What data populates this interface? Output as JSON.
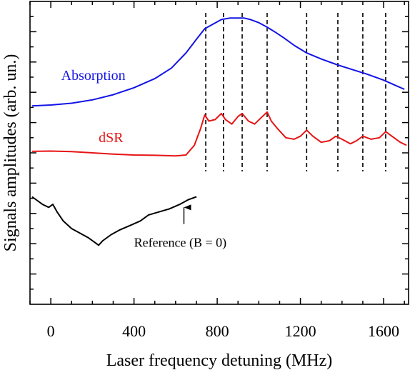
{
  "chart_data": {
    "type": "line",
    "xlabel": "Laser frequency detuning (MHz)",
    "ylabel": "Signals amplitudes (arb. un.)",
    "xlim": [
      -100,
      1720
    ],
    "ylim": [
      0,
      10
    ],
    "xticks": [
      0,
      400,
      800,
      1200,
      1600
    ],
    "x_minor_step": 100,
    "y_tick_step": 0.5,
    "grid": false,
    "legend": "none",
    "series": [
      {
        "name": "Absorption",
        "color": "#1414e6",
        "label_pos": [
          50,
          7.4
        ],
        "points": [
          [
            -90,
            6.55
          ],
          [
            0,
            6.58
          ],
          [
            100,
            6.64
          ],
          [
            200,
            6.75
          ],
          [
            300,
            6.92
          ],
          [
            400,
            7.15
          ],
          [
            500,
            7.45
          ],
          [
            580,
            7.8
          ],
          [
            650,
            8.3
          ],
          [
            700,
            8.75
          ],
          [
            740,
            9.1
          ],
          [
            780,
            9.25
          ],
          [
            820,
            9.4
          ],
          [
            860,
            9.45
          ],
          [
            900,
            9.45
          ],
          [
            930,
            9.45
          ],
          [
            960,
            9.4
          ],
          [
            1000,
            9.3
          ],
          [
            1040,
            9.15
          ],
          [
            1080,
            8.98
          ],
          [
            1120,
            8.8
          ],
          [
            1170,
            8.55
          ],
          [
            1230,
            8.3
          ],
          [
            1300,
            8.1
          ],
          [
            1380,
            7.9
          ],
          [
            1450,
            7.75
          ],
          [
            1520,
            7.6
          ],
          [
            1600,
            7.4
          ],
          [
            1660,
            7.22
          ],
          [
            1700,
            7.1
          ]
        ]
      },
      {
        "name": "dSR",
        "color": "#e61414",
        "label_pos": [
          230,
          5.35
        ],
        "points": [
          [
            -90,
            5.05
          ],
          [
            0,
            5.06
          ],
          [
            100,
            5.04
          ],
          [
            200,
            5.0
          ],
          [
            300,
            4.96
          ],
          [
            400,
            4.93
          ],
          [
            500,
            4.92
          ],
          [
            600,
            4.9
          ],
          [
            650,
            4.93
          ],
          [
            690,
            5.25
          ],
          [
            720,
            5.8
          ],
          [
            740,
            6.25
          ],
          [
            760,
            6.05
          ],
          [
            790,
            6.1
          ],
          [
            820,
            6.3
          ],
          [
            840,
            6.1
          ],
          [
            870,
            5.95
          ],
          [
            900,
            6.2
          ],
          [
            920,
            6.3
          ],
          [
            950,
            6.05
          ],
          [
            980,
            5.95
          ],
          [
            1010,
            6.15
          ],
          [
            1040,
            6.35
          ],
          [
            1060,
            6.05
          ],
          [
            1090,
            5.8
          ],
          [
            1130,
            5.5
          ],
          [
            1170,
            5.45
          ],
          [
            1200,
            5.55
          ],
          [
            1230,
            5.75
          ],
          [
            1260,
            5.55
          ],
          [
            1300,
            5.35
          ],
          [
            1340,
            5.4
          ],
          [
            1370,
            5.55
          ],
          [
            1400,
            5.45
          ],
          [
            1440,
            5.3
          ],
          [
            1470,
            5.4
          ],
          [
            1500,
            5.55
          ],
          [
            1540,
            5.45
          ],
          [
            1580,
            5.5
          ],
          [
            1610,
            5.7
          ],
          [
            1640,
            5.55
          ],
          [
            1680,
            5.35
          ],
          [
            1710,
            5.25
          ]
        ]
      },
      {
        "name": "Reference (B = 0)",
        "color": "#000000",
        "points": [
          [
            -90,
            3.55
          ],
          [
            -40,
            3.3
          ],
          [
            -10,
            3.2
          ],
          [
            10,
            3.3
          ],
          [
            30,
            3.05
          ],
          [
            60,
            2.75
          ],
          [
            100,
            2.5
          ],
          [
            140,
            2.35
          ],
          [
            180,
            2.2
          ],
          [
            210,
            2.05
          ],
          [
            230,
            1.95
          ],
          [
            250,
            2.1
          ],
          [
            290,
            2.3
          ],
          [
            330,
            2.45
          ],
          [
            380,
            2.6
          ],
          [
            430,
            2.75
          ],
          [
            470,
            2.95
          ],
          [
            520,
            3.05
          ],
          [
            570,
            3.15
          ],
          [
            620,
            3.3
          ],
          [
            660,
            3.45
          ],
          [
            700,
            3.55
          ]
        ]
      }
    ],
    "vlines": [
      745,
      830,
      920,
      1040,
      1230,
      1380,
      1500,
      1610
    ],
    "annotations": [
      {
        "text": "Reference (B = 0)",
        "x": 400,
        "y": 1.9,
        "color": "#000000",
        "arrow_to": [
          640,
          3.2
        ],
        "arrow_from": [
          640,
          2.65
        ]
      }
    ]
  }
}
